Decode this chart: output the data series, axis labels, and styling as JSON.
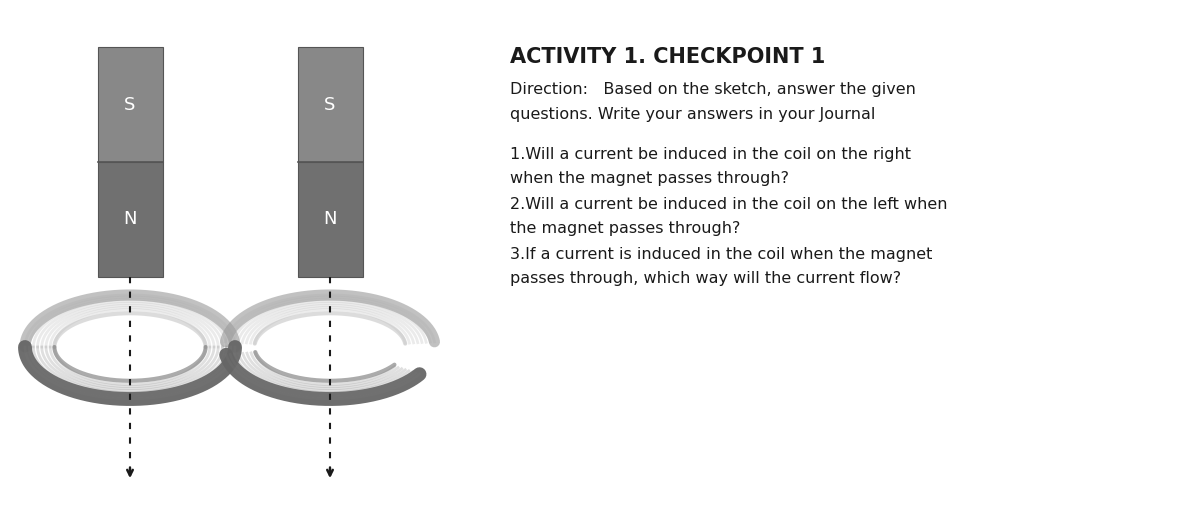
{
  "bg_color": "#ffffff",
  "magnet_s_color": "#888888",
  "magnet_n_color": "#707070",
  "magnet_border": "#555555",
  "coil_color_outer": "#888888",
  "coil_color_inner": "#aaaaaa",
  "dot_color": "#1a1a1a",
  "arrow_color": "#1a1a1a",
  "text_color": "#1a1a1a",
  "label_s": "S",
  "label_n": "N",
  "title": "ACTIVITY 1. CHECKPOINT 1",
  "direction_line1": "Direction:   Based on the sketch, answer the given",
  "direction_line2": "questions. Write your answers in your Journal",
  "q1_line1": "1.Will a current be induced in the coil on the right",
  "q1_line2": "when the magnet passes through?",
  "q2_line1": "2.Will a current be induced in the coil on the left when",
  "q2_line2": "the magnet passes through?",
  "q3_line1": "3.If a current is induced in the coil when the magnet",
  "q3_line2": "passes through, which way will the current flow?",
  "fig_width": 12.0,
  "fig_height": 5.07,
  "dpi": 100
}
